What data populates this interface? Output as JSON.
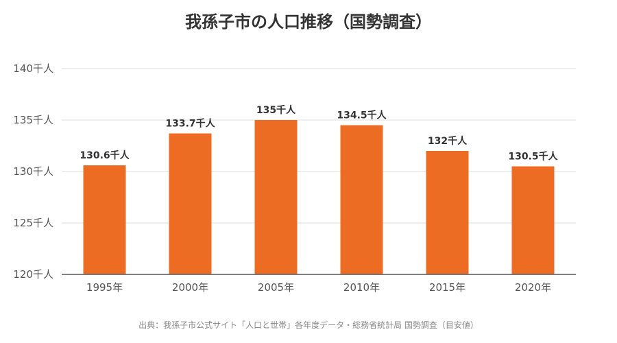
{
  "chart_data": {
    "type": "bar",
    "title": "我孫子市の人口推移（国勢調査）",
    "categories": [
      "1995年",
      "2000年",
      "2005年",
      "2010年",
      "2015年",
      "2020年"
    ],
    "values": [
      130.6,
      133.7,
      135,
      134.5,
      132,
      130.5
    ],
    "data_labels": [
      "130.6千人",
      "133.7千人",
      "135千人",
      "134.5千人",
      "132千人",
      "130.5千人"
    ],
    "y_ticks": [
      {
        "value": 140,
        "label": "140千人"
      },
      {
        "value": 135,
        "label": "135千人"
      },
      {
        "value": 130,
        "label": "130千人"
      },
      {
        "value": 125,
        "label": "125千人"
      },
      {
        "value": 120,
        "label": "120千人"
      }
    ],
    "ylim": [
      120,
      140
    ],
    "grid": true,
    "bar_color": "#ed6c24",
    "source": "出典：我孫子市公式サイト「人口と世帯」各年度データ・総務省統計局 国勢調査（目安値）"
  }
}
